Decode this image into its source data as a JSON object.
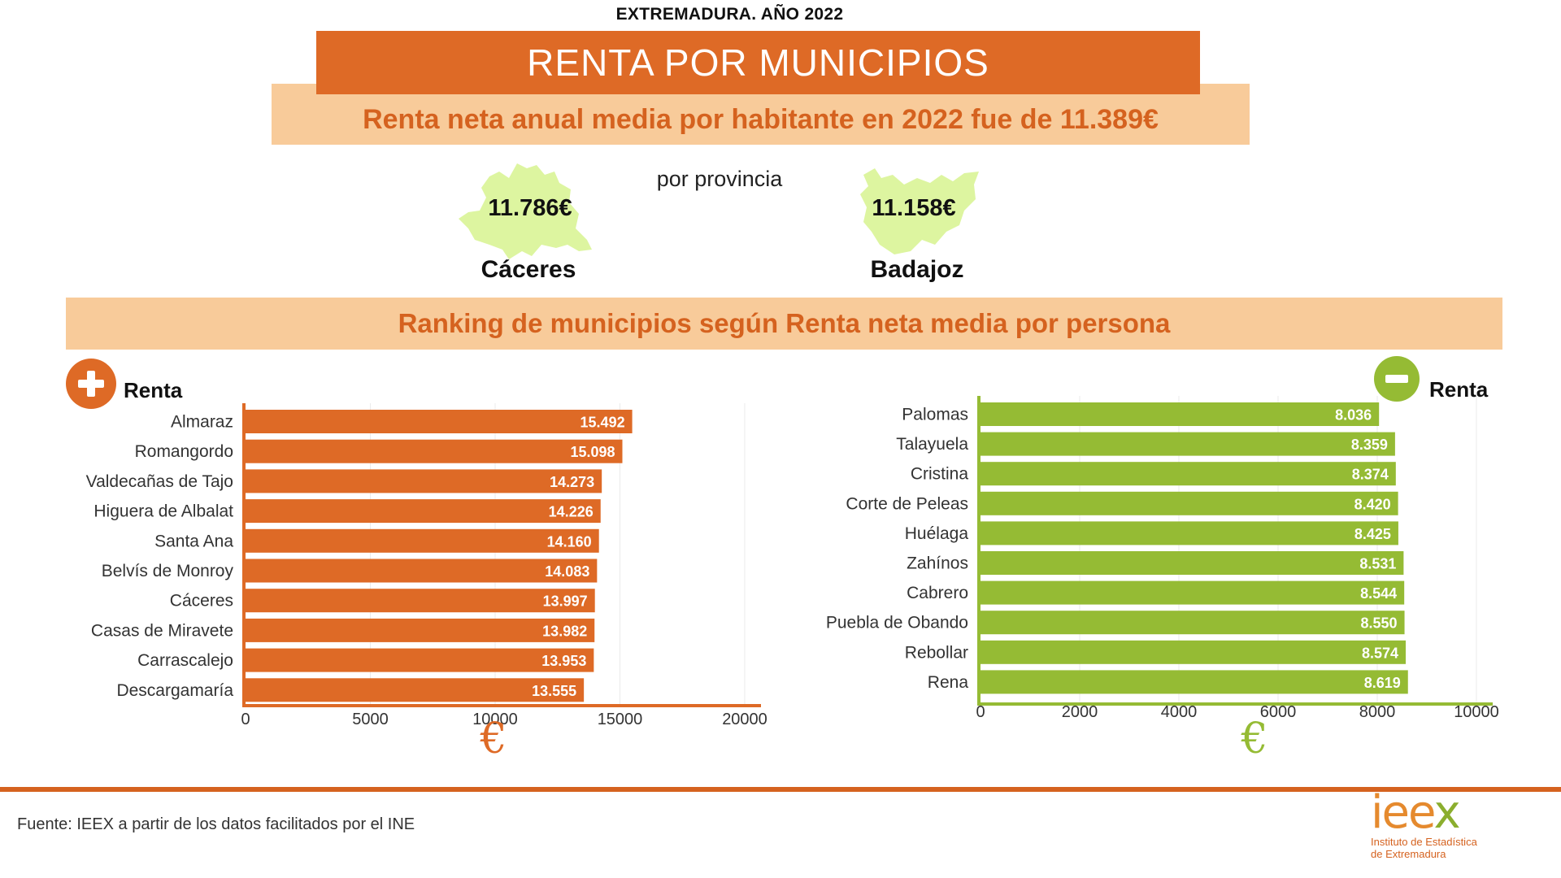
{
  "header": {
    "top_label": "EXTREMADURA. AÑO 2022",
    "title": "RENTA POR MUNICIPIOS",
    "subtitle": "Renta neta anual media por habitante en 2022 fue de 11.389€"
  },
  "provinces": {
    "label": "por provincia",
    "items": [
      {
        "name": "Cáceres",
        "value": "11.786€"
      },
      {
        "name": "Badajoz",
        "value": "11.158€"
      }
    ],
    "map_color": "#DDF5A0"
  },
  "ranking": {
    "title": "Ranking de municipios según Renta neta media por persona",
    "top_label": "Renta",
    "bottom_label": "Renta",
    "currency_symbol": "€"
  },
  "chart_data": [
    {
      "type": "bar",
      "orientation": "horizontal",
      "color": "#DE6A26",
      "categories": [
        "Almaraz",
        "Romangordo",
        "Valdecañas de Tajo",
        "Higuera de Albalat",
        "Santa Ana",
        "Belvís de Monroy",
        "Cáceres",
        "Casas de Miravete",
        "Carrascalejo",
        "Descargamaría"
      ],
      "values": [
        15492,
        15098,
        14273,
        14226,
        14160,
        14083,
        13997,
        13982,
        13953,
        13555
      ],
      "value_labels": [
        "15.492",
        "15.098",
        "14.273",
        "14.226",
        "14.160",
        "14.083",
        "13.997",
        "13.982",
        "13.953",
        "13.555"
      ],
      "xlim": [
        0,
        20000
      ],
      "xticks": [
        "0",
        "5000",
        "10000",
        "15000",
        "20000"
      ],
      "xtick_values": [
        0,
        5000,
        10000,
        15000,
        20000
      ],
      "grid": true
    },
    {
      "type": "bar",
      "orientation": "horizontal",
      "color": "#95BB34",
      "categories": [
        "Palomas",
        "Talayuela",
        "Cristina",
        "Corte de Peleas",
        "Huélaga",
        "Zahínos",
        "Cabrero",
        "Puebla de Obando",
        "Rebollar",
        "Rena"
      ],
      "values": [
        8036,
        8359,
        8374,
        8420,
        8425,
        8531,
        8544,
        8550,
        8574,
        8619
      ],
      "value_labels": [
        "8.036",
        "8.359",
        "8.374",
        "8.420",
        "8.425",
        "8.531",
        "8.544",
        "8.550",
        "8.574",
        "8.619"
      ],
      "xlim": [
        0,
        10000
      ],
      "xticks": [
        "0",
        "2000",
        "4000",
        "6000",
        "8000",
        "10000"
      ],
      "xtick_values": [
        0,
        2000,
        4000,
        6000,
        8000,
        10000
      ],
      "grid": true
    }
  ],
  "footer": {
    "source": "Fuente: IEEX a partir de los datos facilitados por el INE",
    "logo_text_a": "iee",
    "logo_text_b": "x",
    "logo_sub_1": "Instituto de Estadística",
    "logo_sub_2": "de Extremadura"
  },
  "colors": {
    "orange": "#DE6A26",
    "orange_text": "#D5621F",
    "peach": "#F8CB9A",
    "green": "#95BB34",
    "green_light": "#DDF5A0"
  }
}
